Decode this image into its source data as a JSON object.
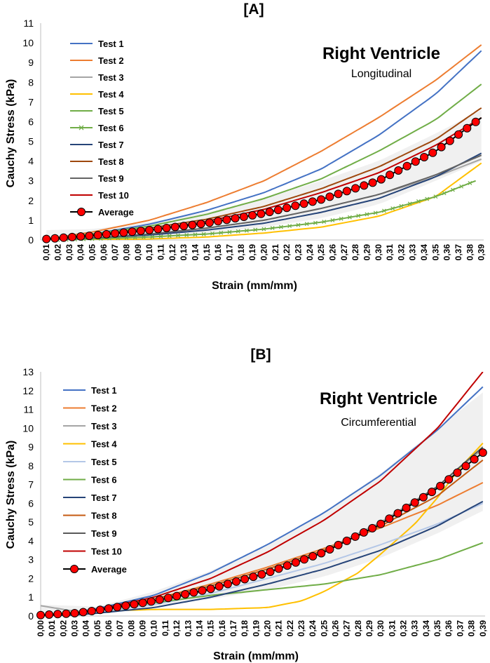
{
  "chart_data": [
    {
      "type": "line",
      "panel_label": "[A]",
      "title": "Right Ventricle",
      "subtitle": "Longitudinal",
      "xlabel": "Strain (mm/mm)",
      "ylabel": "Cauchy Stress (kPa)",
      "ylim": [
        0,
        11
      ],
      "yticks": [
        "0",
        "1",
        "2",
        "3",
        "4",
        "5",
        "6",
        "7",
        "8",
        "9",
        "10",
        "11"
      ],
      "xlim": [
        0.005,
        0.392
      ],
      "xtick_values": [
        0.01,
        0.02,
        0.03,
        0.04,
        0.05,
        0.06,
        0.07,
        0.08,
        0.09,
        0.1,
        0.11,
        0.12,
        0.13,
        0.14,
        0.15,
        0.16,
        0.17,
        0.18,
        0.19,
        0.2,
        0.21,
        0.22,
        0.23,
        0.24,
        0.25,
        0.26,
        0.27,
        0.28,
        0.29,
        0.3,
        0.31,
        0.32,
        0.33,
        0.34,
        0.35,
        0.36,
        0.37,
        0.38,
        0.39
      ],
      "xtick_labels": [
        "0,01",
        "0,02",
        "0,03",
        "0,04",
        "0,05",
        "0,06",
        "0,07",
        "0,08",
        "0,09",
        "0,10",
        "0,11",
        "0,12",
        "0,13",
        "0,14",
        "0,15",
        "0,16",
        "0,17",
        "0,18",
        "0,19",
        "0,20",
        "0,21",
        "0,22",
        "0,23",
        "0,24",
        "0,25",
        "0,26",
        "0,27",
        "0,28",
        "0,29",
        "0,30",
        "0,31",
        "0,32",
        "0,33",
        "0,34",
        "0,35",
        "0,36",
        "0,37",
        "0,38",
        "0,39"
      ],
      "band": {
        "x": [
          0.01,
          0.05,
          0.1,
          0.15,
          0.2,
          0.25,
          0.3,
          0.35,
          0.39
        ],
        "upper": [
          0.5,
          0.55,
          0.9,
          1.4,
          2.1,
          3.0,
          4.0,
          5.4,
          6.6
        ],
        "lower": [
          0.0,
          0.05,
          0.15,
          0.35,
          0.65,
          1.1,
          1.8,
          3.0,
          4.0
        ]
      },
      "series": [
        {
          "name": "Test 1",
          "color": "#4472C4",
          "marker": "none",
          "x": [
            0.01,
            0.05,
            0.1,
            0.15,
            0.2,
            0.25,
            0.3,
            0.35,
            0.39
          ],
          "values": [
            0.05,
            0.3,
            0.8,
            1.5,
            2.4,
            3.6,
            5.3,
            7.4,
            9.6
          ]
        },
        {
          "name": "Test 2",
          "color": "#ED7D31",
          "marker": "none",
          "x": [
            0.01,
            0.05,
            0.1,
            0.15,
            0.2,
            0.25,
            0.3,
            0.35,
            0.39
          ],
          "values": [
            0.05,
            0.4,
            1.0,
            1.9,
            3.0,
            4.5,
            6.2,
            8.1,
            9.9
          ]
        },
        {
          "name": "Test 3",
          "color": "#A5A5A5",
          "marker": "none",
          "x": [
            0.01,
            0.05,
            0.1,
            0.15,
            0.2,
            0.25,
            0.3,
            0.35,
            0.39
          ],
          "values": [
            0.0,
            0.1,
            0.3,
            0.6,
            1.0,
            1.6,
            2.3,
            3.2,
            4.1
          ]
        },
        {
          "name": "Test 4",
          "color": "#FFC000",
          "marker": "none",
          "x": [
            0.01,
            0.05,
            0.1,
            0.15,
            0.2,
            0.25,
            0.3,
            0.35,
            0.39
          ],
          "values": [
            0.0,
            0.0,
            0.05,
            0.15,
            0.35,
            0.65,
            1.2,
            2.2,
            3.9
          ]
        },
        {
          "name": "Test 5",
          "color": "#70AD47",
          "marker": "none",
          "x": [
            0.01,
            0.05,
            0.1,
            0.15,
            0.2,
            0.25,
            0.3,
            0.35,
            0.39
          ],
          "values": [
            0.05,
            0.3,
            0.7,
            1.3,
            2.1,
            3.1,
            4.5,
            6.1,
            7.9
          ]
        },
        {
          "name": "Test 6",
          "color": "#70AD47",
          "marker": "x",
          "x": [
            0.02,
            0.05,
            0.1,
            0.15,
            0.2,
            0.25,
            0.3,
            0.35,
            0.385
          ],
          "values": [
            0.0,
            0.05,
            0.15,
            0.3,
            0.55,
            0.9,
            1.4,
            2.2,
            3.0
          ]
        },
        {
          "name": "Test 7",
          "color": "#264478",
          "marker": "none",
          "x": [
            0.01,
            0.05,
            0.1,
            0.15,
            0.2,
            0.25,
            0.3,
            0.35,
            0.39
          ],
          "values": [
            0.0,
            0.1,
            0.25,
            0.5,
            0.85,
            1.4,
            2.1,
            3.2,
            4.4
          ]
        },
        {
          "name": "Test 8",
          "color": "#9E480E",
          "marker": "none",
          "x": [
            0.01,
            0.05,
            0.1,
            0.15,
            0.2,
            0.25,
            0.3,
            0.35,
            0.39
          ],
          "values": [
            0.05,
            0.25,
            0.6,
            1.05,
            1.7,
            2.6,
            3.7,
            5.1,
            6.7
          ]
        },
        {
          "name": "Test 9",
          "color": "#636363",
          "marker": "none",
          "x": [
            0.01,
            0.05,
            0.1,
            0.15,
            0.2,
            0.25,
            0.3,
            0.35,
            0.39
          ],
          "values": [
            0.0,
            0.1,
            0.3,
            0.6,
            1.0,
            1.6,
            2.3,
            3.3,
            4.3
          ]
        },
        {
          "name": "Test 10",
          "color": "#C00000",
          "marker": "none",
          "x": [
            0.01,
            0.05,
            0.1,
            0.15,
            0.2,
            0.25,
            0.3,
            0.35,
            0.39
          ],
          "values": [
            0.05,
            0.2,
            0.5,
            0.95,
            1.55,
            2.4,
            3.4,
            4.8,
            6.2
          ]
        },
        {
          "name": "Average",
          "color": "#000000",
          "marker": "circle",
          "x": [
            0.01,
            0.05,
            0.1,
            0.15,
            0.2,
            0.25,
            0.3,
            0.35,
            0.39
          ],
          "values": [
            0.05,
            0.22,
            0.5,
            0.85,
            1.35,
            2.05,
            3.0,
            4.5,
            6.2
          ]
        }
      ]
    },
    {
      "type": "line",
      "panel_label": "[B]",
      "title": "Right Ventricle",
      "subtitle": "Circumferential",
      "xlabel": "Strain (mm/mm)",
      "ylabel": "Cauchy Stress (kPa)",
      "ylim": [
        0,
        13
      ],
      "yticks": [
        "0",
        "1",
        "2",
        "3",
        "4",
        "5",
        "6",
        "7",
        "8",
        "9",
        "10",
        "11",
        "12",
        "13"
      ],
      "xlim": [
        0.0,
        0.392
      ],
      "xtick_values": [
        0.0,
        0.01,
        0.02,
        0.03,
        0.04,
        0.05,
        0.06,
        0.07,
        0.08,
        0.09,
        0.1,
        0.11,
        0.12,
        0.13,
        0.14,
        0.15,
        0.16,
        0.17,
        0.18,
        0.19,
        0.2,
        0.21,
        0.22,
        0.23,
        0.24,
        0.25,
        0.26,
        0.27,
        0.28,
        0.29,
        0.3,
        0.31,
        0.32,
        0.33,
        0.34,
        0.35,
        0.36,
        0.37,
        0.38,
        0.39
      ],
      "xtick_labels": [
        "0,00",
        "0,01",
        "0,02",
        "0,03",
        "0,04",
        "0,05",
        "0,06",
        "0,07",
        "0,08",
        "0,09",
        "0,10",
        "0,11",
        "0,12",
        "0,13",
        "0,14",
        "0,15",
        "0,16",
        "0,17",
        "0,18",
        "0,19",
        "0,20",
        "0,21",
        "0,22",
        "0,23",
        "0,24",
        "0,25",
        "0,26",
        "0,27",
        "0,28",
        "0,29",
        "0,30",
        "0,31",
        "0,32",
        "0,33",
        "0,34",
        "0,35",
        "0,36",
        "0,37",
        "0,38",
        "0,39"
      ],
      "band": {
        "x": [
          0.0,
          0.05,
          0.1,
          0.15,
          0.2,
          0.25,
          0.3,
          0.35,
          0.39
        ],
        "upper": [
          0.6,
          0.5,
          1.3,
          2.4,
          3.8,
          5.5,
          7.6,
          10.0,
          11.9
        ],
        "lower": [
          0.0,
          0.2,
          0.5,
          0.9,
          1.4,
          2.1,
          3.1,
          4.4,
          5.6
        ]
      },
      "series": [
        {
          "name": "Test 1",
          "color": "#4472C4",
          "marker": "none",
          "x": [
            0.0,
            0.03,
            0.05,
            0.1,
            0.15,
            0.2,
            0.25,
            0.3,
            0.35,
            0.39
          ],
          "values": [
            0.05,
            0.2,
            0.4,
            1.1,
            2.3,
            3.8,
            5.5,
            7.5,
            9.9,
            12.2
          ]
        },
        {
          "name": "Test 2",
          "color": "#ED7D31",
          "marker": "none",
          "x": [
            0.0,
            0.03,
            0.05,
            0.1,
            0.15,
            0.2,
            0.25,
            0.3,
            0.35,
            0.39
          ],
          "values": [
            0.0,
            0.1,
            0.3,
            0.9,
            1.7,
            2.6,
            3.6,
            4.7,
            5.9,
            7.1
          ]
        },
        {
          "name": "Test 3",
          "color": "#A5A5A5",
          "marker": "none",
          "x": [
            0.0,
            0.03,
            0.05,
            0.1,
            0.15,
            0.2,
            0.25,
            0.3,
            0.35,
            0.39
          ],
          "values": [
            0.55,
            0.25,
            0.3,
            0.7,
            1.4,
            2.3,
            3.5,
            5.0,
            6.9,
            8.9
          ]
        },
        {
          "name": "Test 4",
          "color": "#FFC000",
          "marker": "none",
          "x": [
            0.0,
            0.03,
            0.05,
            0.1,
            0.15,
            0.2,
            0.23,
            0.25,
            0.28,
            0.3,
            0.33,
            0.35,
            0.37,
            0.39
          ],
          "values": [
            0.05,
            0.2,
            0.25,
            0.35,
            0.35,
            0.45,
            0.8,
            1.3,
            2.3,
            3.3,
            4.9,
            6.3,
            7.9,
            9.2
          ]
        },
        {
          "name": "Test 5",
          "color": "#B4C7E7",
          "marker": "none",
          "x": [
            0.0,
            0.03,
            0.05,
            0.1,
            0.15,
            0.2,
            0.25,
            0.3,
            0.35,
            0.39
          ],
          "values": [
            0.0,
            0.1,
            0.2,
            0.6,
            1.2,
            2.0,
            2.8,
            3.8,
            4.9,
            6.0
          ]
        },
        {
          "name": "Test 6",
          "color": "#70AD47",
          "marker": "none",
          "x": [
            0.0,
            0.03,
            0.05,
            0.1,
            0.15,
            0.2,
            0.25,
            0.3,
            0.35,
            0.39
          ],
          "values": [
            0.0,
            0.1,
            0.3,
            0.7,
            1.1,
            1.4,
            1.7,
            2.2,
            3.0,
            3.9
          ]
        },
        {
          "name": "Test 7",
          "color": "#264478",
          "marker": "none",
          "x": [
            0.0,
            0.03,
            0.05,
            0.1,
            0.15,
            0.2,
            0.25,
            0.3,
            0.35,
            0.39
          ],
          "values": [
            0.0,
            0.05,
            0.15,
            0.45,
            1.0,
            1.7,
            2.5,
            3.5,
            4.8,
            6.1
          ]
        },
        {
          "name": "Test 8",
          "color": "#C55A11",
          "marker": "none",
          "x": [
            0.0,
            0.03,
            0.05,
            0.1,
            0.15,
            0.2,
            0.25,
            0.3,
            0.35,
            0.39
          ],
          "values": [
            0.0,
            0.15,
            0.35,
            0.9,
            1.6,
            2.5,
            3.5,
            4.8,
            6.4,
            8.3
          ]
        },
        {
          "name": "Test 9",
          "color": "#595959",
          "marker": "none",
          "x": [
            0.0,
            0.03,
            0.05,
            0.1,
            0.15,
            0.2,
            0.25,
            0.3,
            0.35,
            0.39
          ],
          "values": [
            0.0,
            0.1,
            0.3,
            0.8,
            1.4,
            2.3,
            3.4,
            4.9,
            6.9,
            9.0
          ]
        },
        {
          "name": "Test 10",
          "color": "#C00000",
          "marker": "none",
          "x": [
            0.0,
            0.03,
            0.05,
            0.1,
            0.15,
            0.2,
            0.25,
            0.3,
            0.35,
            0.39
          ],
          "values": [
            0.0,
            0.15,
            0.35,
            1.0,
            2.0,
            3.4,
            5.1,
            7.2,
            10.0,
            13.0
          ]
        },
        {
          "name": "Average",
          "color": "#000000",
          "marker": "circle",
          "x": [
            0.0,
            0.03,
            0.05,
            0.1,
            0.15,
            0.2,
            0.25,
            0.3,
            0.35,
            0.39
          ],
          "values": [
            0.05,
            0.15,
            0.3,
            0.8,
            1.45,
            2.3,
            3.4,
            4.9,
            6.8,
            8.7
          ]
        }
      ]
    }
  ]
}
